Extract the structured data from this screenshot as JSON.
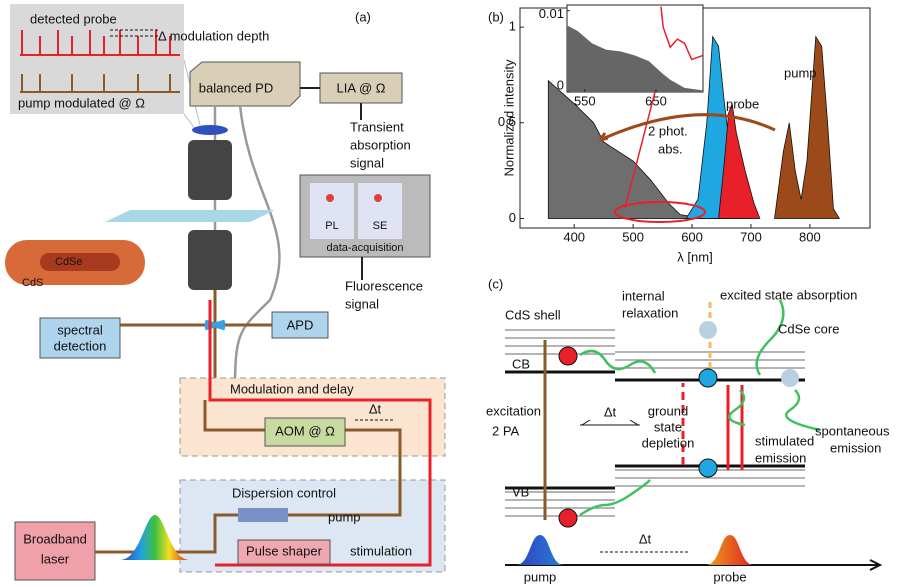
{
  "panel_a": {
    "label": "(a)",
    "detected_probe": "detected probe",
    "modulation_depth": "Δ modulation depth",
    "pump_modulated": "pump modulated @ Ω",
    "balanced_pd": "balanced PD",
    "lia": "LIA @ Ω",
    "transient": [
      "Transient",
      "absorption",
      "signal"
    ],
    "pl": "PL",
    "se": "SE",
    "data_acquisition": "data-acquisition",
    "cds": "CdS",
    "cdse": "CdSe",
    "fluorescence": [
      "Fluorescence",
      "signal"
    ],
    "spectral_detection": [
      "spectral",
      "detection"
    ],
    "apd": "APD",
    "modulation_delay": "Modulation and delay",
    "delta_t": "Δt",
    "aom": "AOM @ Ω",
    "dispersion_control": "Dispersion control",
    "pump": "pump",
    "stimulation": "stimulation",
    "pulse_shaper": "Pulse shaper",
    "laser": [
      "Broadband",
      "laser"
    ]
  },
  "chart_data": {
    "type": "area",
    "label": "(b)",
    "ylabel": "Normalized intensity",
    "xlabel": "λ [nm]",
    "xlim": [
      308,
      902
    ],
    "ylim": [
      -0.05,
      1.1
    ],
    "xticks": [
      400,
      500,
      600,
      700,
      800
    ],
    "yticks": [
      0,
      0.5,
      1
    ],
    "series": [
      {
        "name": "absorption",
        "color": "#6e6e6e",
        "x": [
          356,
          400,
          433,
          450,
          500,
          530,
          560,
          580,
          600,
          650
        ],
        "values": [
          0.72,
          0.6,
          0.5,
          0.4,
          0.3,
          0.2,
          0.08,
          0.02,
          0.01,
          0.005
        ]
      },
      {
        "name": "probe",
        "color": "#1ea7e1",
        "x": [
          590,
          610,
          625,
          635,
          645,
          655,
          665,
          680,
          700
        ],
        "values": [
          0,
          0.1,
          0.5,
          0.95,
          0.9,
          0.6,
          0.35,
          0.1,
          0
        ]
      },
      {
        "name": "probe",
        "color": "#e8202a",
        "x": [
          645,
          655,
          662,
          668,
          675,
          690,
          705,
          715
        ],
        "values": [
          0,
          0.3,
          0.55,
          0.6,
          0.45,
          0.25,
          0.08,
          0
        ]
      },
      {
        "name": "pump",
        "color": "#9c4a1a",
        "x": [
          740,
          755,
          765,
          775,
          785,
          795,
          810,
          820,
          830,
          840,
          850
        ],
        "values": [
          0,
          0.35,
          0.5,
          0.25,
          0.1,
          0.3,
          0.95,
          0.9,
          0.5,
          0.05,
          0
        ]
      }
    ],
    "annotations": [
      "2 phot.",
      "abs."
    ],
    "inset": {
      "xlim": [
        525,
        716
      ],
      "ylim": [
        0,
        0.0107
      ],
      "xticks": [
        550,
        650
      ],
      "yticks": [
        0,
        0.01
      ],
      "series": [
        {
          "name": "absorption",
          "color": "#666",
          "x": [
            525,
            540,
            560,
            580,
            600,
            620,
            640,
            650,
            660,
            670,
            690,
            716
          ],
          "values": [
            0.0082,
            0.0075,
            0.006,
            0.0052,
            0.005,
            0.0045,
            0.0038,
            0.003,
            0.0022,
            0.0015,
            0.0005,
            0.0002
          ]
        },
        {
          "name": "probe",
          "color": "#e8202a",
          "x": [
            657,
            660,
            670,
            680,
            690,
            700,
            716
          ],
          "values": [
            0.0105,
            0.008,
            0.0055,
            0.0065,
            0.006,
            0.004,
            0.0045
          ]
        }
      ]
    }
  },
  "panel_c": {
    "label": "(c)",
    "cds_shell": "CdS shell",
    "internal_relaxation": [
      "internal",
      "relaxation"
    ],
    "esa": "excited state absorption",
    "cdse_core": "CdSe core",
    "cb": "CB",
    "excitation": [
      "excitation",
      "2 PA"
    ],
    "delta_t": "Δt",
    "gsd": [
      "ground",
      "state",
      "depletion"
    ],
    "stimulated": [
      "stimulated",
      "emission"
    ],
    "spontaneous": [
      "spontaneous",
      "emission"
    ],
    "vb": "VB",
    "pump": "pump",
    "delta_t2": "Δt",
    "probe": "probe"
  }
}
